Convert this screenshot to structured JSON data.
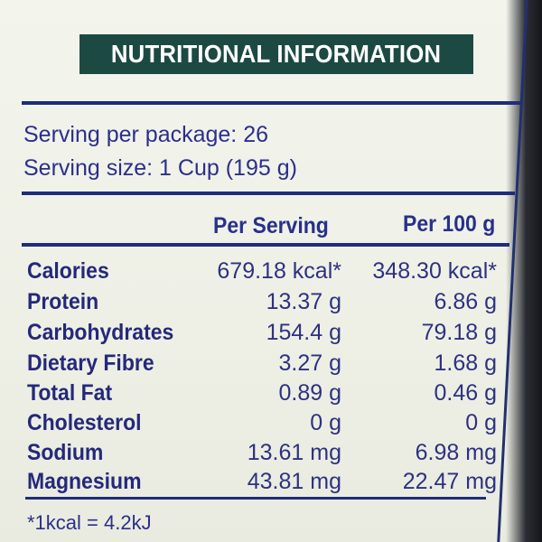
{
  "title": "NUTRITIONAL INFORMATION",
  "servings": {
    "per_package": "Serving per package: 26",
    "size": "Serving size: 1 Cup (195 g)"
  },
  "table": {
    "headers": {
      "per_serving": "Per Serving",
      "per_100g": "Per 100 g"
    },
    "rows": [
      {
        "name": "Calories",
        "per_serving": "679.18 kcal*",
        "per_100g": "348.30 kcal*"
      },
      {
        "name": "Protein",
        "per_serving": "13.37 g",
        "per_100g": "6.86 g"
      },
      {
        "name": "Carbohydrates",
        "per_serving": "154.4 g",
        "per_100g": "79.18 g"
      },
      {
        "name": "Dietary Fibre",
        "per_serving": "3.27 g",
        "per_100g": "1.68 g"
      },
      {
        "name": "Total Fat",
        "per_serving": "0.89 g",
        "per_100g": "0.46 g"
      },
      {
        "name": "Cholesterol",
        "per_serving": "0 g",
        "per_100g": "0 g"
      },
      {
        "name": "Sodium",
        "per_serving": "13.61 mg",
        "per_100g": "6.98 mg"
      },
      {
        "name": "Magnesium",
        "per_serving": "43.81 mg",
        "per_100g": "22.47 mg"
      }
    ]
  },
  "footnote": "*1kcal = 4.2kJ",
  "colors": {
    "title_bg": "#1c4a43",
    "rule": "#1f2d7a",
    "text": "#2c2f8a",
    "background": "#f0f1e9"
  }
}
